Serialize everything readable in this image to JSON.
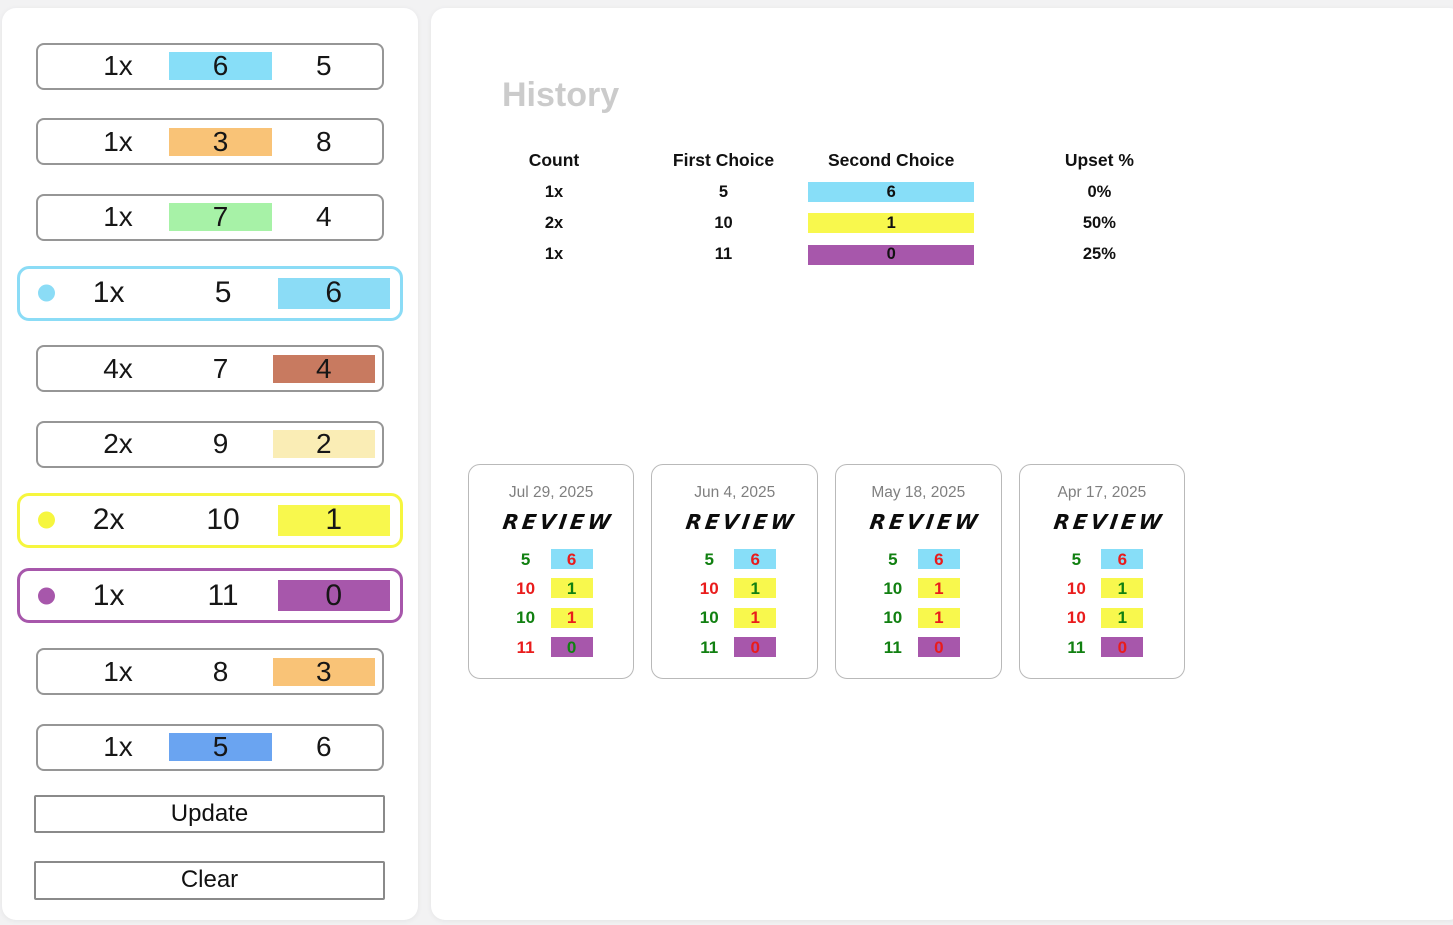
{
  "colors": {
    "page_background": "#f2f2f3",
    "panel_background": "#ffffff",
    "green_text": "#118011",
    "red_text": "#e91c1c",
    "sky_blue": "#87def8",
    "orange": "#f9c377",
    "light_green": "#a7f2a7",
    "brick": "#c87a60",
    "pale_yellow": "#faedb5",
    "yellow": "#f8f84d",
    "purple": "#a757ab",
    "cornflower_blue": "#6aa4f1",
    "selected_blue_border": "#8bdcf6",
    "selected_yellow_border": "#f6f63e",
    "selected_purple_border": "#a757ab"
  },
  "sidebar": {
    "rows": [
      {
        "count": "1x",
        "first": "6",
        "second": "5",
        "highlight": "first",
        "highlight_color": "#87def8",
        "selected": false
      },
      {
        "count": "1x",
        "first": "3",
        "second": "8",
        "highlight": "first",
        "highlight_color": "#f9c377",
        "selected": false
      },
      {
        "count": "1x",
        "first": "7",
        "second": "4",
        "highlight": "first",
        "highlight_color": "#a7f2a7",
        "selected": false
      },
      {
        "count": "1x",
        "first": "5",
        "second": "6",
        "highlight": "second",
        "highlight_color": "#8bdcf6",
        "selected": true,
        "selected_color": "#8bdcf6"
      },
      {
        "count": "4x",
        "first": "7",
        "second": "4",
        "highlight": "second",
        "highlight_color": "#c87a60",
        "selected": false
      },
      {
        "count": "2x",
        "first": "9",
        "second": "2",
        "highlight": "second",
        "highlight_color": "#faedb5",
        "selected": false
      },
      {
        "count": "2x",
        "first": "10",
        "second": "1",
        "highlight": "second",
        "highlight_color": "#f8f84d",
        "selected": true,
        "selected_color": "#f6f63e"
      },
      {
        "count": "1x",
        "first": "11",
        "second": "0",
        "highlight": "second",
        "highlight_color": "#a757ab",
        "selected": true,
        "selected_color": "#a757ab"
      },
      {
        "count": "1x",
        "first": "8",
        "second": "3",
        "highlight": "second",
        "highlight_color": "#f9c377",
        "selected": false
      },
      {
        "count": "1x",
        "first": "5",
        "second": "6",
        "highlight": "first",
        "highlight_color": "#6aa4f1",
        "selected": false
      }
    ],
    "buttons": {
      "update": "Update",
      "clear": "Clear"
    }
  },
  "history": {
    "title": "History",
    "table": {
      "headers": [
        "Count",
        "First Choice",
        "Second Choice",
        "Upset %"
      ],
      "rows": [
        {
          "count": "1x",
          "first": "5",
          "second": "6",
          "second_chip_color": "#87def8",
          "upset": "0%"
        },
        {
          "count": "2x",
          "first": "10",
          "second": "1",
          "second_chip_color": "#f8f84d",
          "upset": "50%"
        },
        {
          "count": "1x",
          "first": "11",
          "second": "0",
          "second_chip_color": "#a757ab",
          "upset": "25%"
        }
      ]
    },
    "cards": [
      {
        "date": "Jul 29, 2025",
        "logo": "REVIEW",
        "rows": [
          {
            "left": "5",
            "left_color": "green",
            "value": "6",
            "value_color": "red",
            "chip_color": "#87def8"
          },
          {
            "left": "10",
            "left_color": "red",
            "value": "1",
            "value_color": "green",
            "chip_color": "#f8f84d"
          },
          {
            "left": "10",
            "left_color": "green",
            "value": "1",
            "value_color": "red",
            "chip_color": "#f8f84d"
          },
          {
            "left": "11",
            "left_color": "red",
            "value": "0",
            "value_color": "green",
            "chip_color": "#a757ab"
          }
        ]
      },
      {
        "date": "Jun 4, 2025",
        "logo": "REVIEW",
        "rows": [
          {
            "left": "5",
            "left_color": "green",
            "value": "6",
            "value_color": "red",
            "chip_color": "#87def8"
          },
          {
            "left": "10",
            "left_color": "red",
            "value": "1",
            "value_color": "green",
            "chip_color": "#f8f84d"
          },
          {
            "left": "10",
            "left_color": "green",
            "value": "1",
            "value_color": "red",
            "chip_color": "#f8f84d"
          },
          {
            "left": "11",
            "left_color": "green",
            "value": "0",
            "value_color": "red",
            "chip_color": "#a757ab"
          }
        ]
      },
      {
        "date": "May 18, 2025",
        "logo": "REVIEW",
        "rows": [
          {
            "left": "5",
            "left_color": "green",
            "value": "6",
            "value_color": "red",
            "chip_color": "#87def8"
          },
          {
            "left": "10",
            "left_color": "green",
            "value": "1",
            "value_color": "red",
            "chip_color": "#f8f84d"
          },
          {
            "left": "10",
            "left_color": "green",
            "value": "1",
            "value_color": "red",
            "chip_color": "#f8f84d"
          },
          {
            "left": "11",
            "left_color": "green",
            "value": "0",
            "value_color": "red",
            "chip_color": "#a757ab"
          }
        ]
      },
      {
        "date": "Apr 17, 2025",
        "logo": "REVIEW",
        "rows": [
          {
            "left": "5",
            "left_color": "green",
            "value": "6",
            "value_color": "red",
            "chip_color": "#87def8"
          },
          {
            "left": "10",
            "left_color": "red",
            "value": "1",
            "value_color": "green",
            "chip_color": "#f8f84d"
          },
          {
            "left": "10",
            "left_color": "red",
            "value": "1",
            "value_color": "green",
            "chip_color": "#f8f84d"
          },
          {
            "left": "11",
            "left_color": "green",
            "value": "0",
            "value_color": "red",
            "chip_color": "#a757ab"
          }
        ]
      }
    ]
  }
}
